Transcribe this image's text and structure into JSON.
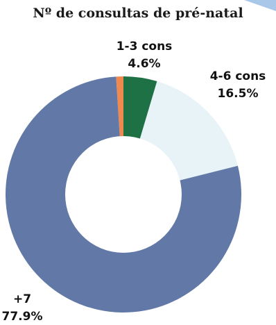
{
  "chart_data": {
    "type": "pie",
    "variant": "donut",
    "title": "Nº de consultas de pré-natal",
    "slices": [
      {
        "category": "",
        "percent_label": "",
        "value": 1.0,
        "color": "#f0894f"
      },
      {
        "category": "1-3 cons",
        "percent_label": "4.6%",
        "value": 4.6,
        "color": "#1e7145"
      },
      {
        "category": "4-6 cons",
        "percent_label": "16.5%",
        "value": 16.5,
        "color": "#e8f3f8"
      },
      {
        "category": "+7",
        "percent_label": "77.9%",
        "value": 77.9,
        "color": "#6279a8"
      }
    ],
    "accent_color": "#a9c8e9"
  }
}
